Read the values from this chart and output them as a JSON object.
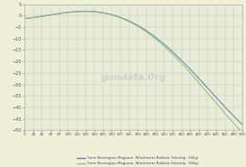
{
  "bg_color": "#f0f0d8",
  "plot_bg_color": "#e8ecd8",
  "grid_color": "#c8ccb4",
  "xlim": [
    0,
    500
  ],
  "ylim": [
    -50,
    5
  ],
  "x_ticks": [
    0,
    20,
    40,
    60,
    80,
    100,
    120,
    140,
    160,
    180,
    200,
    220,
    240,
    260,
    280,
    300,
    320,
    340,
    360,
    380,
    400,
    420,
    440,
    460,
    480,
    500
  ],
  "y_ticks": [
    5,
    0,
    -5,
    -10,
    -15,
    -20,
    -25,
    -30,
    -35,
    -40,
    -45,
    -50
  ],
  "line1_color": "#6688aa",
  "line2_color": "#99bb88",
  "line1_label": "7mm Remington Magnum, Winchester Ballistic Silvertip, 140gr",
  "line2_label": "7mm Remington Magnum, Winchester Ballistic Silvertip, 160gr",
  "watermark": "gundata.0rg",
  "watermark_color": "#bbbbbb",
  "tick_fontsize": 3.5,
  "legend_fontsize": 2.8
}
